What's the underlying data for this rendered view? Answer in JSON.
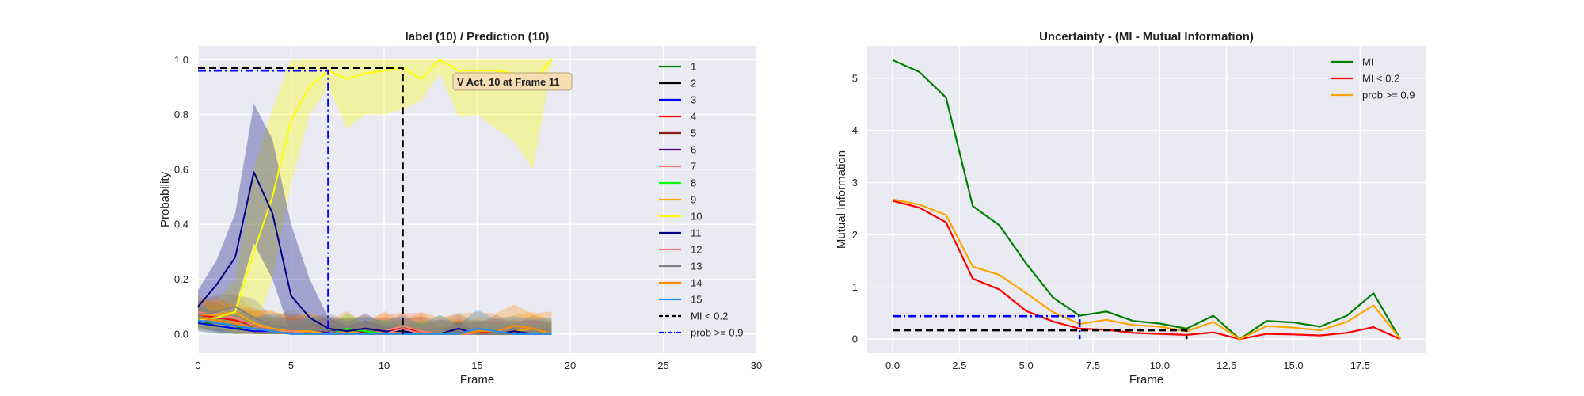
{
  "chart_data": [
    {
      "type": "line",
      "title": "label (10) / Prediction (10)",
      "xlabel": "Frame",
      "ylabel": "Probability",
      "xlim": [
        0,
        30
      ],
      "ylim": [
        -0.07,
        1.05
      ],
      "xticks": [
        0,
        5,
        10,
        15,
        20,
        25,
        30
      ],
      "yticks": [
        0.0,
        0.2,
        0.4,
        0.6,
        0.8,
        1.0
      ],
      "ytick_labels": [
        "0.0",
        "0.2",
        "0.4",
        "0.6",
        "0.8",
        "1.0"
      ],
      "grid": true,
      "legend": "right",
      "annotation": {
        "text": "V  Act. 10 at Frame 11",
        "x": 14,
        "y": 0.92,
        "bg": "#f5deb3"
      },
      "series": [
        {
          "name": "1",
          "color": "#008000",
          "values": [
            0.05,
            0.03,
            0.02,
            0.03,
            0.02,
            0.01,
            0.01,
            0.0,
            0.01,
            0.02,
            0.01,
            0.01,
            0.0,
            0.0,
            0.0,
            0.0,
            0.0,
            0.0,
            0.0,
            0.0
          ],
          "band": 0.03
        },
        {
          "name": "2",
          "color": "#000000",
          "values": [
            0.06,
            0.05,
            0.04,
            0.02,
            0.01,
            0.01,
            0.0,
            0.0,
            0.0,
            0.0,
            0.0,
            0.0,
            0.0,
            0.0,
            0.0,
            0.0,
            0.0,
            0.0,
            0.0,
            0.0
          ],
          "band": 0.02
        },
        {
          "name": "3",
          "color": "#0000ff",
          "values": [
            0.04,
            0.03,
            0.02,
            0.01,
            0.01,
            0.0,
            0.0,
            0.0,
            0.0,
            0.0,
            0.0,
            0.0,
            0.0,
            0.0,
            0.0,
            0.0,
            0.0,
            0.0,
            0.0,
            0.0
          ],
          "band": 0.02
        },
        {
          "name": "4",
          "color": "#ff0000",
          "values": [
            0.07,
            0.06,
            0.05,
            0.03,
            0.02,
            0.01,
            0.01,
            0.0,
            0.01,
            0.0,
            0.01,
            0.02,
            0.01,
            0.0,
            0.0,
            0.01,
            0.0,
            0.01,
            0.0,
            0.0
          ],
          "band": 0.04
        },
        {
          "name": "5",
          "color": "#8b1a1a",
          "values": [
            0.06,
            0.05,
            0.04,
            0.02,
            0.01,
            0.01,
            0.0,
            0.0,
            0.0,
            0.01,
            0.0,
            0.0,
            0.0,
            0.0,
            0.01,
            0.0,
            0.0,
            0.0,
            0.0,
            0.0
          ],
          "band": 0.03
        },
        {
          "name": "6",
          "color": "#4b0082",
          "values": [
            0.05,
            0.04,
            0.03,
            0.02,
            0.01,
            0.01,
            0.0,
            0.01,
            0.01,
            0.02,
            0.01,
            0.0,
            0.0,
            0.0,
            0.0,
            0.0,
            0.0,
            0.0,
            0.0,
            0.0
          ],
          "band": 0.04
        },
        {
          "name": "7",
          "color": "#fa8072",
          "values": [
            0.08,
            0.07,
            0.06,
            0.03,
            0.02,
            0.01,
            0.01,
            0.0,
            0.0,
            0.0,
            0.01,
            0.03,
            0.01,
            0.0,
            0.0,
            0.0,
            0.0,
            0.01,
            0.0,
            0.0
          ],
          "band": 0.05
        },
        {
          "name": "8",
          "color": "#00ff00",
          "values": [
            0.06,
            0.05,
            0.04,
            0.02,
            0.01,
            0.01,
            0.0,
            0.0,
            0.02,
            0.01,
            0.0,
            0.0,
            0.0,
            0.0,
            0.0,
            0.0,
            0.0,
            0.0,
            0.0,
            0.0
          ],
          "band": 0.04
        },
        {
          "name": "9",
          "color": "#ffa500",
          "values": [
            0.07,
            0.07,
            0.08,
            0.04,
            0.02,
            0.01,
            0.01,
            0.0,
            0.01,
            0.0,
            0.0,
            0.01,
            0.0,
            0.0,
            0.0,
            0.0,
            0.0,
            0.01,
            0.02,
            0.0
          ],
          "band": 0.05
        },
        {
          "name": "10",
          "color": "#ffff00",
          "values": [
            0.05,
            0.06,
            0.08,
            0.3,
            0.5,
            0.78,
            0.9,
            0.96,
            0.93,
            0.95,
            0.96,
            0.97,
            0.93,
            1.0,
            0.96,
            0.96,
            0.96,
            0.95,
            0.92,
            1.0
          ],
          "band_lo": [
            0.02,
            0.02,
            0.0,
            0.0,
            0.2,
            0.55,
            0.8,
            0.9,
            0.75,
            0.8,
            0.8,
            0.82,
            0.85,
            0.95,
            0.79,
            0.8,
            0.75,
            0.7,
            0.6,
            0.98
          ],
          "band_hi": [
            0.09,
            0.12,
            0.2,
            0.6,
            0.82,
            1.0,
            1.0,
            1.0,
            1.0,
            1.0,
            1.0,
            1.0,
            1.0,
            1.0,
            1.0,
            1.0,
            1.0,
            1.0,
            1.0,
            1.0
          ]
        },
        {
          "name": "11",
          "color": "#000080",
          "values": [
            0.1,
            0.18,
            0.28,
            0.59,
            0.44,
            0.14,
            0.06,
            0.02,
            0.01,
            0.02,
            0.01,
            0.01,
            0.0,
            0.0,
            0.02,
            0.0,
            0.0,
            0.01,
            0.0,
            0.0
          ],
          "band_lo": [
            0.05,
            0.08,
            0.1,
            0.33,
            0.2,
            0.0,
            0.0,
            0.0,
            0.0,
            0.0,
            0.0,
            0.0,
            0.0,
            0.0,
            0.0,
            0.0,
            0.0,
            0.0,
            0.0,
            0.0
          ],
          "band_hi": [
            0.16,
            0.27,
            0.44,
            0.84,
            0.71,
            0.4,
            0.2,
            0.06,
            0.03,
            0.05,
            0.03,
            0.03,
            0.0,
            0.0,
            0.05,
            0.0,
            0.0,
            0.02,
            0.0,
            0.0
          ]
        },
        {
          "name": "12",
          "color": "#f08080",
          "values": [
            0.06,
            0.05,
            0.04,
            0.02,
            0.01,
            0.01,
            0.0,
            0.0,
            0.0,
            0.0,
            0.0,
            0.02,
            0.0,
            0.0,
            0.0,
            0.0,
            0.0,
            0.0,
            0.0,
            0.0
          ],
          "band": 0.04
        },
        {
          "name": "13",
          "color": "#808080",
          "values": [
            0.07,
            0.08,
            0.1,
            0.06,
            0.03,
            0.02,
            0.02,
            0.01,
            0.0,
            0.0,
            0.0,
            0.0,
            0.0,
            0.0,
            0.01,
            0.0,
            0.0,
            0.0,
            0.0,
            0.0
          ],
          "band": 0.05
        },
        {
          "name": "14",
          "color": "#ff8c00",
          "values": [
            0.06,
            0.05,
            0.04,
            0.02,
            0.01,
            0.0,
            0.0,
            0.0,
            0.0,
            0.0,
            0.0,
            0.0,
            0.0,
            0.0,
            0.0,
            0.01,
            0.01,
            0.03,
            0.02,
            0.0
          ],
          "band": 0.06
        },
        {
          "name": "15",
          "color": "#1e90ff",
          "values": [
            0.05,
            0.04,
            0.03,
            0.02,
            0.01,
            0.0,
            0.0,
            0.0,
            0.0,
            0.0,
            0.0,
            0.0,
            0.0,
            0.0,
            0.0,
            0.02,
            0.01,
            0.0,
            0.0,
            0.0
          ],
          "band": 0.05
        }
      ],
      "threshold_lines": [
        {
          "name": "MI < 0.2",
          "color": "#000000",
          "style": "dashed",
          "y": 0.97,
          "x_end": 11
        },
        {
          "name": "prob >= 0.9",
          "color": "#0000ff",
          "style": "dashdot",
          "y": 0.96,
          "x_end": 7
        }
      ]
    },
    {
      "type": "line",
      "title": "Uncertainty - (MI - Mutual Information)",
      "xlabel": "Frame",
      "ylabel": "Mutual Information",
      "xlim": [
        -0.95,
        19.95
      ],
      "ylim": [
        -0.27,
        5.62
      ],
      "xticks": [
        0.0,
        2.5,
        5.0,
        7.5,
        10.0,
        12.5,
        15.0,
        17.5
      ],
      "xtick_labels": [
        "0.0",
        "2.5",
        "5.0",
        "7.5",
        "10.0",
        "12.5",
        "15.0",
        "17.5"
      ],
      "yticks": [
        0,
        1,
        2,
        3,
        4,
        5
      ],
      "grid": true,
      "legend": "top-right",
      "x": [
        0,
        1,
        2,
        3,
        4,
        5,
        6,
        7,
        8,
        9,
        10,
        11,
        12,
        13,
        14,
        15,
        16,
        17,
        18,
        19
      ],
      "series": [
        {
          "name": "MI",
          "color": "#008000",
          "values": [
            5.35,
            5.12,
            4.63,
            2.55,
            2.18,
            1.45,
            0.8,
            0.45,
            0.53,
            0.35,
            0.3,
            0.2,
            0.45,
            0.0,
            0.35,
            0.32,
            0.24,
            0.45,
            0.88,
            0.0
          ]
        },
        {
          "name": "MI < 0.2",
          "color": "#ff0000",
          "values": [
            2.65,
            2.52,
            2.24,
            1.16,
            0.95,
            0.54,
            0.34,
            0.2,
            0.18,
            0.12,
            0.1,
            0.08,
            0.13,
            0.0,
            0.1,
            0.09,
            0.07,
            0.12,
            0.23,
            0.0
          ]
        },
        {
          "name": "prob >= 0.9",
          "color": "#ffa500",
          "values": [
            2.68,
            2.58,
            2.38,
            1.39,
            1.23,
            0.88,
            0.52,
            0.29,
            0.37,
            0.27,
            0.24,
            0.15,
            0.33,
            0.0,
            0.25,
            0.22,
            0.17,
            0.33,
            0.65,
            0.0
          ]
        }
      ],
      "threshold_lines": [
        {
          "color": "#000000",
          "style": "dashed",
          "y": 0.17,
          "x_end": 11
        },
        {
          "color": "#0000ff",
          "style": "dashdot",
          "y": 0.44,
          "x_end": 7
        }
      ]
    }
  ]
}
